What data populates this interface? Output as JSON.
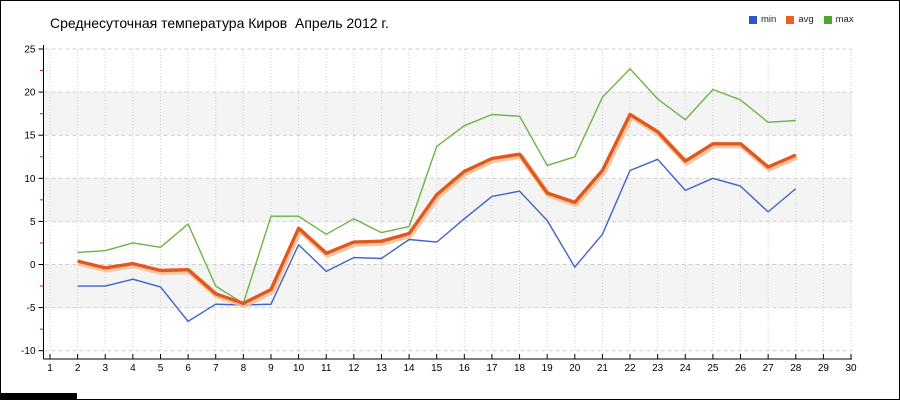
{
  "title": "Среднесуточная температура Киров  Апрель 2012 г.",
  "legend": {
    "items": [
      {
        "label": "min",
        "color": "#2f55cc"
      },
      {
        "label": "avg",
        "color": "#e8601f"
      },
      {
        "label": "max",
        "color": "#4ca82c"
      }
    ]
  },
  "chart_data": {
    "type": "line",
    "title": "Среднесуточная температура Киров  Апрель 2012 г.",
    "xlabel": "",
    "ylabel": "",
    "x": [
      2,
      3,
      4,
      5,
      6,
      7,
      8,
      9,
      10,
      11,
      12,
      13,
      14,
      15,
      16,
      17,
      18,
      19,
      20,
      21,
      22,
      23,
      24,
      25,
      26,
      27,
      28
    ],
    "series": [
      {
        "name": "min",
        "color": "#3d64c8",
        "line_width": 1.4,
        "values": [
          -2.5,
          -2.5,
          -1.7,
          -2.6,
          -6.6,
          -4.6,
          -4.7,
          -4.6,
          2.3,
          -0.8,
          0.8,
          0.7,
          2.9,
          2.6,
          5.3,
          7.9,
          8.5,
          5.1,
          -0.3,
          3.5,
          10.9,
          12.2,
          8.6,
          10.0,
          9.1,
          6.1,
          8.8
        ]
      },
      {
        "name": "avg",
        "color": "#e2581c",
        "halo_color": "#f5bd94",
        "line_width": 3.4,
        "values": [
          0.4,
          -0.4,
          0.1,
          -0.7,
          -0.6,
          -3.4,
          -4.5,
          -2.9,
          4.2,
          1.3,
          2.6,
          2.7,
          3.6,
          8.1,
          10.8,
          12.3,
          12.8,
          8.3,
          7.2,
          10.9,
          17.4,
          15.4,
          12.0,
          14.0,
          14.0,
          11.3,
          12.7
        ]
      },
      {
        "name": "max",
        "color": "#6cb446",
        "line_width": 1.4,
        "values": [
          1.4,
          1.6,
          2.5,
          2.0,
          4.7,
          -2.5,
          -4.5,
          5.6,
          5.6,
          3.5,
          5.3,
          3.7,
          4.4,
          13.7,
          16.1,
          17.4,
          17.2,
          11.5,
          12.5,
          19.4,
          22.7,
          19.2,
          16.8,
          20.3,
          19.1,
          16.5,
          16.7
        ]
      }
    ],
    "xlim": [
      1,
      30
    ],
    "ylim": [
      -10,
      25
    ],
    "x_ticks": [
      1,
      2,
      3,
      4,
      5,
      6,
      7,
      8,
      9,
      10,
      11,
      12,
      13,
      14,
      15,
      16,
      17,
      18,
      19,
      20,
      21,
      22,
      23,
      24,
      25,
      26,
      27,
      28,
      29,
      30
    ],
    "y_ticks": [
      -10,
      -5,
      0,
      5,
      10,
      15,
      20,
      25
    ],
    "y_minor_ticks": [
      -7.5,
      -2.5,
      2.5,
      7.5,
      12.5,
      17.5,
      22.5
    ],
    "grid": true,
    "grid_style": "dashed",
    "grid_color": "#cfcfcf",
    "band_ranges": [
      [
        15,
        20
      ],
      [
        5,
        10
      ],
      [
        -5,
        0
      ]
    ],
    "band_color": "#f4f4f4",
    "axis_color": "#000000",
    "minor_tick_color": "#cc2200",
    "legend_position": "top-right"
  }
}
